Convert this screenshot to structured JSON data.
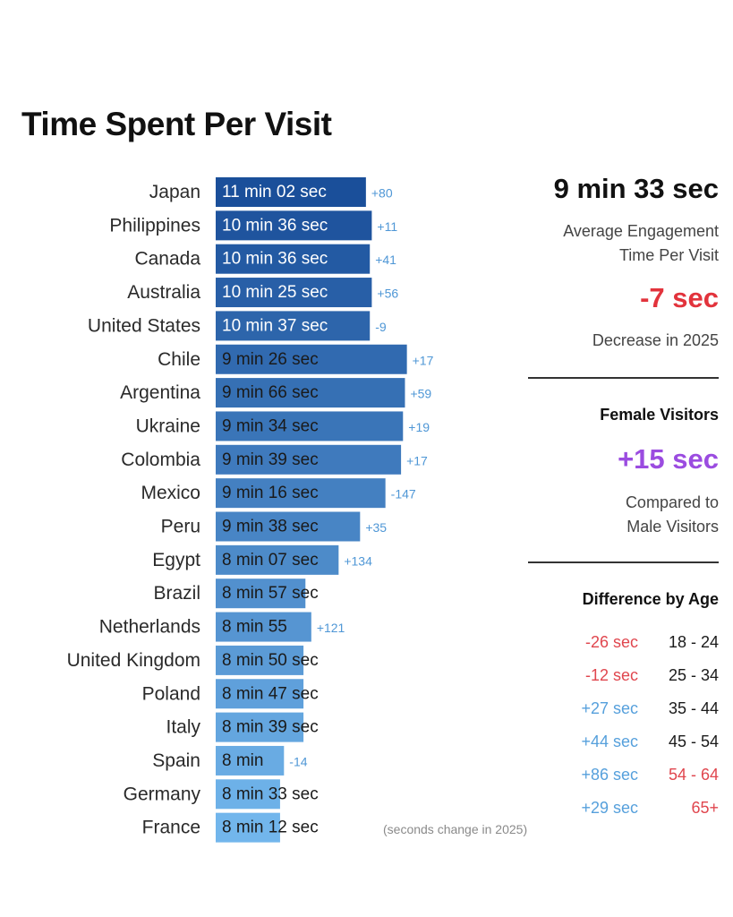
{
  "chart_data": {
    "type": "bar",
    "orientation": "horizontal",
    "title": "Time Spent Per Visit",
    "footnote": "(seconds change in 2025)",
    "bars": [
      {
        "country": "Japan",
        "label": "11 min 02 sec",
        "change": "+80"
      },
      {
        "country": "Philippines",
        "label": "10 min 36 sec",
        "change": "+11"
      },
      {
        "country": "Canada",
        "label": "10 min 36 sec",
        "change": "+41"
      },
      {
        "country": "Australia",
        "label": "10 min 25 sec",
        "change": "+56"
      },
      {
        "country": "United States",
        "label": "10 min 37 sec",
        "change": "-9"
      },
      {
        "country": "Chile",
        "label": "9 min 26 sec",
        "change": "+17"
      },
      {
        "country": "Argentina",
        "label": "9 min 66 sec",
        "change": "+59"
      },
      {
        "country": "Ukraine",
        "label": "9 min 34 sec",
        "change": "+19"
      },
      {
        "country": "Colombia",
        "label": "9 min 39 sec",
        "change": "+17"
      },
      {
        "country": "Mexico",
        "label": "9 min 16 sec",
        "change": "-147"
      },
      {
        "country": "Peru",
        "label": "9 min 38 sec",
        "change": "+35"
      },
      {
        "country": "Egypt",
        "label": "8 min 07 sec",
        "change": "+134"
      },
      {
        "country": "Brazil",
        "label": "8 min 57 sec",
        "change": ""
      },
      {
        "country": "Netherlands",
        "label": "8 min 55",
        "change": "+121"
      },
      {
        "country": "United Kingdom",
        "label": "8 min 50 sec",
        "change": ""
      },
      {
        "country": "Poland",
        "label": "8 min 47 sec",
        "change": ""
      },
      {
        "country": "Italy",
        "label": "8 min 39 sec",
        "change": ""
      },
      {
        "country": "Spain",
        "label": "8 min",
        "change": "-14"
      },
      {
        "country": "Germany",
        "label": "8 min 33 sec",
        "change": ""
      },
      {
        "country": "France",
        "label": "8 min 12 sec",
        "change": ""
      }
    ],
    "bar_lengths_relative": [
      0.77,
      0.8,
      0.79,
      0.8,
      0.79,
      0.98,
      0.97,
      0.96,
      0.95,
      0.87,
      0.74,
      0.63,
      0.46,
      0.49,
      0.45,
      0.45,
      0.45,
      0.35,
      0.33,
      0.33
    ],
    "colors": {
      "bar_dark": "#1a4f9a",
      "bar_light": "#72b6ec"
    }
  },
  "summary": {
    "avg_value": "9 min 33 sec",
    "avg_label_1": "Average Engagement",
    "avg_label_2": "Time Per Visit",
    "decrease_value": "-7 sec",
    "decrease_label": "Decrease in 2025",
    "female_heading": "Female Visitors",
    "female_value": "+15 sec",
    "female_label_1": "Compared to",
    "female_label_2": "Male Visitors",
    "age_heading": "Difference by Age",
    "age_rows": [
      {
        "diff": "-26 sec",
        "range": "18 - 24"
      },
      {
        "diff": "-12 sec",
        "range": "25 - 34"
      },
      {
        "diff": "+27 sec",
        "range": "35 - 44"
      },
      {
        "diff": "+44 sec",
        "range": "45 - 54"
      },
      {
        "diff": "+86 sec",
        "range": "54 - 64"
      },
      {
        "diff": "+29 sec",
        "range": "65+"
      }
    ]
  }
}
